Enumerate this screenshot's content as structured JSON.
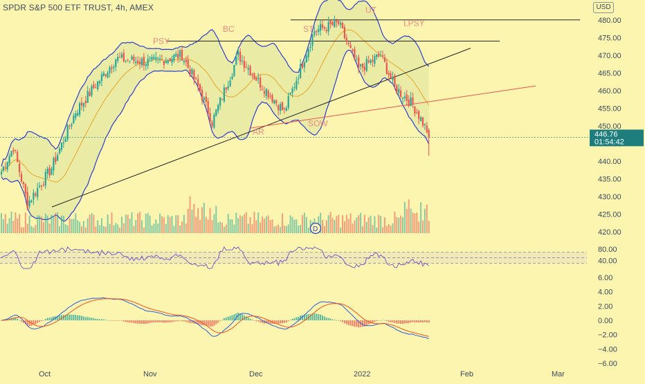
{
  "header": {
    "title": "SPDR S&P 500 ETF TRUST, 4h, AMEX",
    "currency": "USD"
  },
  "price_badge": {
    "price": "446.76",
    "countdown": "01:54:42",
    "color": "#1e7d7d"
  },
  "colors": {
    "background": "#fbf5b0",
    "bull": "#26a69a",
    "bear": "#ef5350",
    "band": "#2b3ccf",
    "band_fill": "#e6eaa3",
    "basis": "#e8a427",
    "annotation": "#ef8a80",
    "rsi_line": "#6b4fc8",
    "macd_line": "#2a5bd7",
    "signal_line": "#f4511e"
  },
  "chart_data": [
    {
      "type": "candlestick",
      "pane": "price",
      "ylim": [
        418,
        482
      ],
      "y_ticks": [
        "480.00",
        "475.00",
        "470.00",
        "465.00",
        "460.00",
        "455.00",
        "450.00",
        "445.00",
        "440.00",
        "435.00",
        "430.00",
        "425.00",
        "420.00"
      ],
      "x_labels": [
        "Oct",
        "Nov",
        "Dec",
        "2022",
        "Feb",
        "Mar"
      ],
      "series": [
        {
          "name": "Price",
          "key_points": [
            {
              "d": "Sep 22",
              "v": 437
            },
            {
              "d": "Sep 27",
              "v": 444
            },
            {
              "d": "Oct 4",
              "v": 428
            },
            {
              "d": "Oct 14",
              "v": 438
            },
            {
              "d": "Oct 22",
              "v": 454
            },
            {
              "d": "Nov 5",
              "v": 469
            },
            {
              "d": "Nov 16",
              "v": 468
            },
            {
              "d": "Nov 26",
              "v": 470
            },
            {
              "d": "Dec 1",
              "v": 460
            },
            {
              "d": "Dec 3",
              "v": 451
            },
            {
              "d": "Dec 10",
              "v": 470
            },
            {
              "d": "Dec 15",
              "v": 462
            },
            {
              "d": "Dec 20",
              "v": 454
            },
            {
              "d": "Dec 28",
              "v": 477
            },
            {
              "d": "Jan 4",
              "v": 479
            },
            {
              "d": "Jan 7",
              "v": 466
            },
            {
              "d": "Jan 12",
              "v": 470
            },
            {
              "d": "Jan 14",
              "v": 461
            },
            {
              "d": "Jan 18",
              "v": 456
            },
            {
              "d": "Jan 21",
              "v": 446.76
            }
          ]
        },
        {
          "name": "Volume",
          "key_points": "bars along the bottom of the price pane"
        }
      ],
      "annotations": [
        "PSY",
        "BC",
        "ST",
        "UT",
        "LPSY",
        "AR",
        "SOW"
      ],
      "last_price": 446.76,
      "x_range": [
        "Sep 20",
        "Mar 10"
      ]
    },
    {
      "type": "line",
      "pane": "rsi",
      "ylim": [
        0,
        100
      ],
      "y_ticks": [
        "80.00",
        "40.00"
      ],
      "band": [
        30,
        70
      ]
    },
    {
      "type": "line",
      "pane": "macd",
      "ylim": [
        -6,
        6
      ],
      "y_ticks": [
        "6.00",
        "4.00",
        "2.00",
        "0.00",
        "−2.00",
        "−4.00",
        "−6.00"
      ]
    }
  ],
  "volume_marker": "D"
}
